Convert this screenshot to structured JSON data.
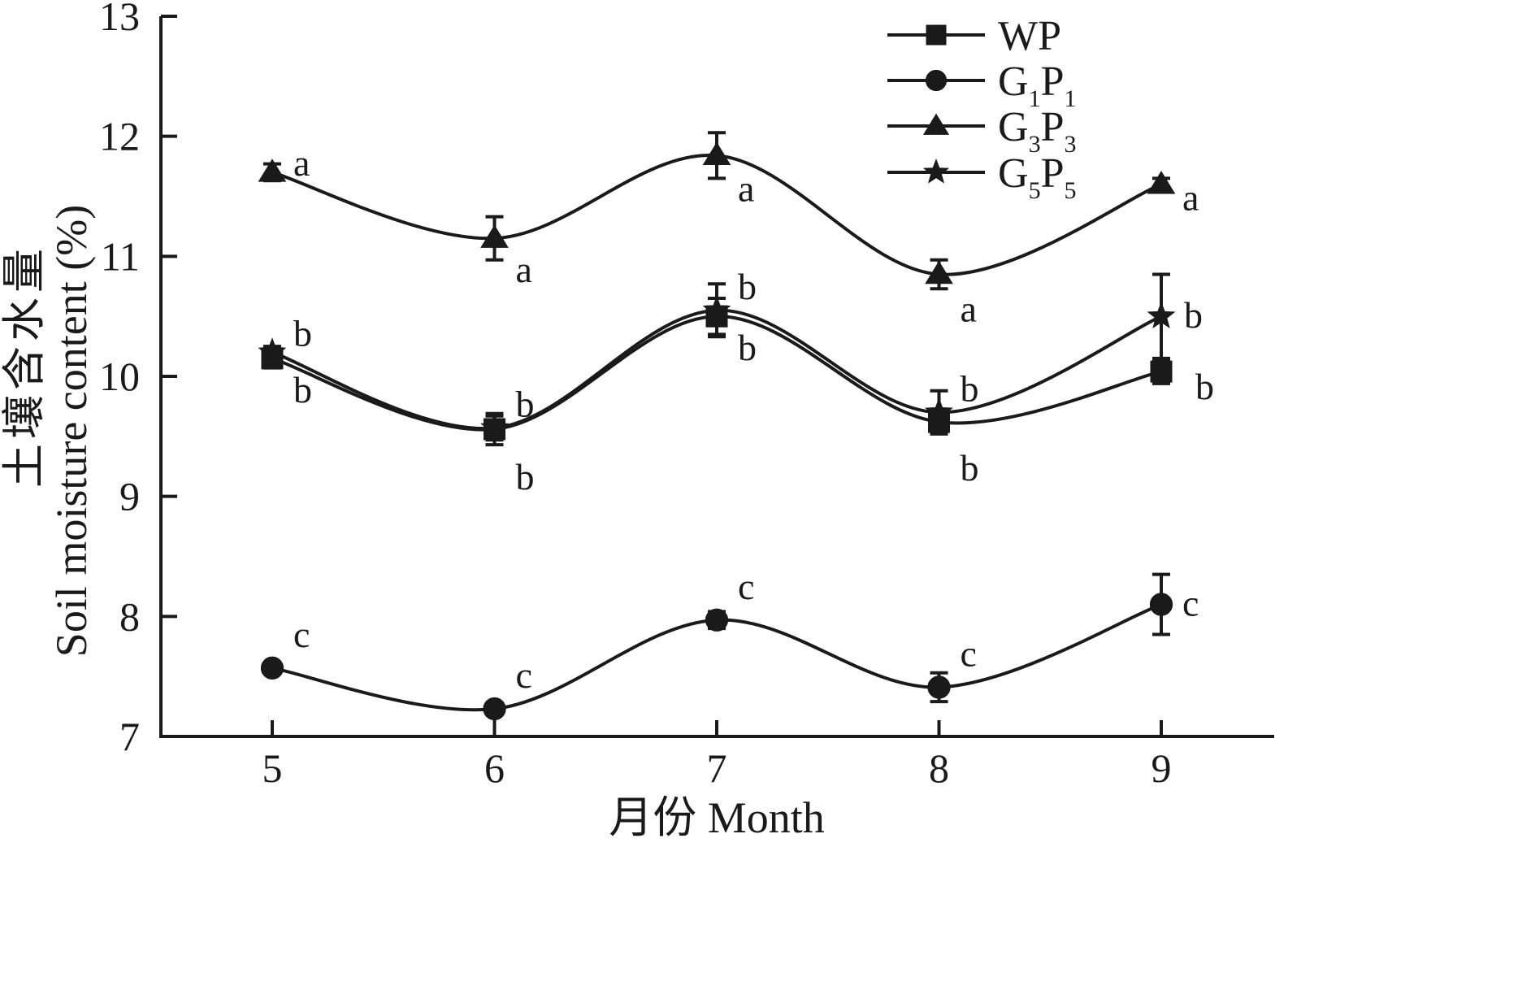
{
  "chart_data": {
    "type": "line",
    "ylabel_cn": "土壤含水量",
    "ylabel_en": "Soil moisture content (%)",
    "xlabel": "月份 Month",
    "x": [
      5,
      6,
      7,
      8,
      9
    ],
    "xticks": [
      "5",
      "6",
      "7",
      "8",
      "9"
    ],
    "ylim": [
      7,
      13
    ],
    "yticks": [
      "7",
      "8",
      "9",
      "10",
      "11",
      "12",
      "13"
    ],
    "grid": false,
    "legend_position": "top-right",
    "series": [
      {
        "key": "WP",
        "name_main": "WP",
        "marker": "square",
        "values": [
          10.15,
          9.56,
          10.5,
          9.62,
          10.04
        ],
        "errors": [
          0.08,
          0.13,
          0.15,
          0.07,
          0.1
        ],
        "sig": [
          "b",
          "b",
          "b",
          "b",
          "b"
        ]
      },
      {
        "key": "G1P1",
        "name_parts": [
          "G",
          "1",
          "P",
          "1"
        ],
        "marker": "circle",
        "values": [
          7.57,
          7.23,
          7.97,
          7.41,
          8.1
        ],
        "errors": [
          0.03,
          0.05,
          0.07,
          0.12,
          0.25
        ],
        "sig": [
          "c",
          "c",
          "c",
          "c",
          "c"
        ]
      },
      {
        "key": "G3P3",
        "name_parts": [
          "G",
          "3",
          "P",
          "3"
        ],
        "marker": "triangle",
        "values": [
          11.7,
          11.15,
          11.84,
          10.85,
          11.6
        ],
        "errors": [
          0.07,
          0.18,
          0.19,
          0.12,
          0.05
        ],
        "sig": [
          "a",
          "a",
          "a",
          "a",
          "a"
        ]
      },
      {
        "key": "G5P5",
        "name_parts": [
          "G",
          "5",
          "P",
          "5"
        ],
        "marker": "star",
        "values": [
          10.2,
          9.57,
          10.55,
          9.7,
          10.5
        ],
        "errors": [
          0.05,
          0.1,
          0.22,
          0.18,
          0.35
        ],
        "sig": [
          "b",
          "b",
          "b",
          "b",
          "b"
        ]
      }
    ]
  }
}
